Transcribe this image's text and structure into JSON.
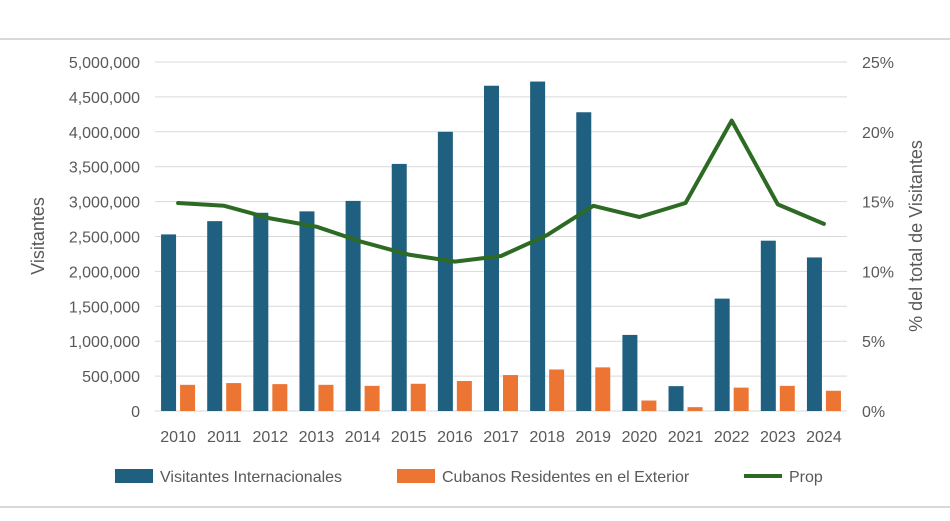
{
  "colors": {
    "series1": "#1f5f7f",
    "series2": "#ec7533",
    "line": "#2d6b24",
    "grid": "#d9d9d9",
    "text": "#595959"
  },
  "chart_data": {
    "type": "bar",
    "title": "",
    "xlabel": "",
    "ylabel": "Visitantes",
    "y2label": "% del total de Visitantes",
    "categories": [
      "2010",
      "2011",
      "2012",
      "2013",
      "2014",
      "2015",
      "2016",
      "2017",
      "2018",
      "2019",
      "2020",
      "2021",
      "2022",
      "2023",
      "2024"
    ],
    "ylim": [
      0,
      5000000
    ],
    "y2lim": [
      0,
      25
    ],
    "yticks": [
      "0",
      "500,000",
      "1,000,000",
      "1,500,000",
      "2,000,000",
      "2,500,000",
      "3,000,000",
      "3,500,000",
      "4,000,000",
      "4,500,000",
      "5,000,000"
    ],
    "y2ticks": [
      "0%",
      "5%",
      "10%",
      "15%",
      "20%",
      "25%"
    ],
    "series": [
      {
        "name": "Visitantes Internacionales",
        "type": "bar",
        "axis": "left",
        "values": [
          2530000,
          2720000,
          2840000,
          2860000,
          3010000,
          3540000,
          4000000,
          4660000,
          4720000,
          4280000,
          1090000,
          356000,
          1610000,
          2440000,
          2200000
        ]
      },
      {
        "name": "Cubanos Residentes en el Exterior",
        "type": "bar",
        "axis": "left",
        "values": [
          375000,
          400000,
          385000,
          375000,
          360000,
          390000,
          430000,
          515000,
          595000,
          625000,
          150000,
          55000,
          335000,
          360000,
          290000
        ]
      },
      {
        "name": "Prop",
        "type": "line",
        "axis": "right",
        "values": [
          14.9,
          14.7,
          13.8,
          13.2,
          12.1,
          11.2,
          10.7,
          11.1,
          12.6,
          14.7,
          13.9,
          14.9,
          20.8,
          14.8,
          13.4
        ]
      }
    ],
    "legend_position": "bottom"
  }
}
